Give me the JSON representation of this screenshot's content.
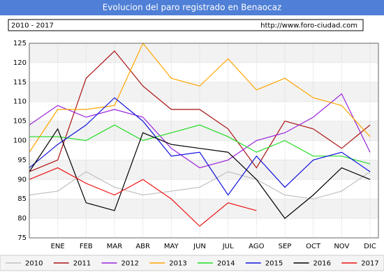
{
  "chart_data": {
    "type": "line",
    "title": "Evolucion del paro registrado en Benaocaz",
    "period": "2010 - 2017",
    "source": "http://www.foro-ciudad.com",
    "categories": [
      null,
      "ENE",
      "FEB",
      "MAR",
      "ABR",
      "MAY",
      "JUN",
      "JUL",
      "AGO",
      "SEP",
      "OCT",
      "NOV",
      "DIC"
    ],
    "ylim": [
      75,
      125
    ],
    "yticks": [
      75,
      80,
      85,
      90,
      95,
      100,
      105,
      110,
      115,
      120,
      125
    ],
    "grid": true,
    "legend": "bottom",
    "series": [
      {
        "name": "2010",
        "color": "#c0c0c0",
        "values": [
          86,
          87,
          92,
          88,
          86,
          87,
          88,
          92,
          90,
          86,
          85,
          87,
          92
        ]
      },
      {
        "name": "2011",
        "color": "#aa1111",
        "values": [
          92,
          95,
          116,
          123,
          114,
          108,
          108,
          103,
          93,
          105,
          103,
          98,
          104
        ]
      },
      {
        "name": "2012",
        "color": "#9922dd",
        "values": [
          104,
          109,
          106,
          108,
          106,
          98,
          93,
          95,
          100,
          102,
          106,
          112,
          97
        ]
      },
      {
        "name": "2013",
        "color": "#ffa500",
        "values": [
          97,
          108,
          108,
          109,
          125,
          116,
          114,
          121,
          113,
          116,
          111,
          109,
          101
        ]
      },
      {
        "name": "2014",
        "color": "#22dd22",
        "values": [
          101,
          101,
          100,
          104,
          100,
          102,
          104,
          101,
          97,
          100,
          96,
          96,
          94
        ]
      },
      {
        "name": "2015",
        "color": "#1111dd",
        "values": [
          93,
          99,
          104,
          111,
          105,
          96,
          97,
          86,
          96,
          88,
          95,
          97,
          92
        ]
      },
      {
        "name": "2016",
        "color": "#000000",
        "values": [
          92,
          103,
          84,
          82,
          102,
          99,
          98,
          97,
          90,
          80,
          86,
          93,
          90
        ]
      },
      {
        "name": "2017",
        "color": "#ee1111",
        "values": [
          90,
          93,
          89,
          86,
          90,
          85,
          78,
          84,
          82,
          null,
          null,
          null,
          null
        ]
      }
    ]
  }
}
